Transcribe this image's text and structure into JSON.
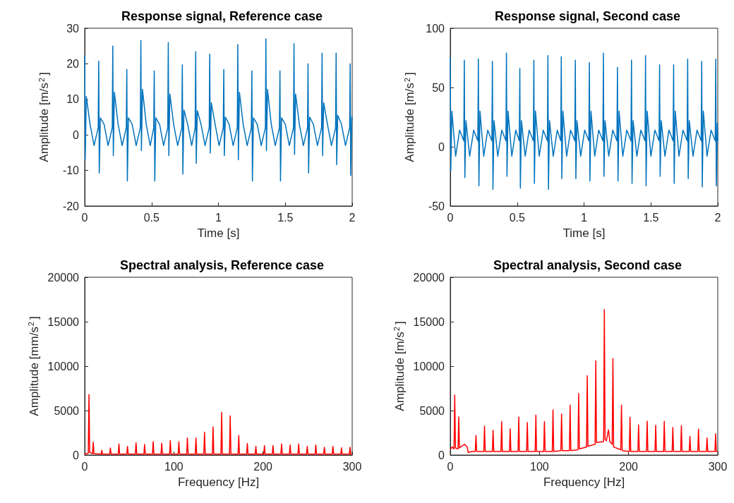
{
  "chart_data": [
    {
      "type": "line",
      "title": "Response signal, Reference case",
      "xlabel": "Time [s]",
      "ylabel": "Amplitude [m/s$^{2}$]",
      "xlim": [
        0,
        2
      ],
      "xticks": [
        0,
        0.5,
        1,
        1.5,
        2
      ],
      "ylim": [
        -20,
        30
      ],
      "yticks": [
        -20,
        -10,
        0,
        10,
        20,
        30
      ],
      "grid": false,
      "x": [
        0,
        0.004,
        0.012,
        0.04,
        0.07,
        0.101,
        0.105,
        0.109,
        0.117,
        0.145,
        0.175,
        0.206,
        0.21,
        0.214,
        0.222,
        0.25,
        0.28,
        0.311,
        0.315,
        0.319,
        0.327,
        0.355,
        0.385,
        0.416,
        0.42,
        0.424,
        0.432,
        0.46,
        0.49,
        0.516,
        0.52,
        0.524,
        0.532,
        0.56,
        0.59,
        0.621,
        0.625,
        0.629,
        0.637,
        0.665,
        0.695,
        0.726,
        0.73,
        0.734,
        0.742,
        0.77,
        0.8,
        0.826,
        0.83,
        0.834,
        0.842,
        0.87,
        0.9,
        0.931,
        0.935,
        0.939,
        0.947,
        0.975,
        1.005,
        1.036,
        1.04,
        1.044,
        1.052,
        1.08,
        1.11,
        1.141,
        1.145,
        1.149,
        1.157,
        1.185,
        1.215,
        1.246,
        1.25,
        1.254,
        1.262,
        1.29,
        1.32,
        1.351,
        1.355,
        1.359,
        1.367,
        1.395,
        1.425,
        1.456,
        1.46,
        1.464,
        1.472,
        1.5,
        1.53,
        1.561,
        1.565,
        1.569,
        1.577,
        1.605,
        1.635,
        1.666,
        1.67,
        1.674,
        1.682,
        1.71,
        1.74,
        1.771,
        1.775,
        1.779,
        1.787,
        1.815,
        1.845,
        1.876,
        1.88,
        1.884,
        1.892,
        1.92,
        1.95,
        1.981,
        1.985,
        1.989,
        1.997,
        2
      ],
      "series": [
        {
          "color": "#0072bd",
          "values": [
            22.4,
            -7,
            10.8,
            3,
            -3,
            2,
            20.7,
            -10.7,
            4.8,
            3,
            -3,
            2,
            25,
            -5.8,
            12,
            3,
            -3,
            2,
            18.4,
            -13,
            4.8,
            3,
            -3,
            2,
            26.6,
            -4.4,
            12.8,
            3,
            -3,
            2,
            18,
            -13,
            4.8,
            3,
            -3,
            2,
            26,
            -5.8,
            11.5,
            3,
            -3,
            2,
            19.7,
            -11,
            7,
            3,
            -3,
            2,
            23.4,
            -8,
            6.8,
            3,
            -3,
            2,
            22.7,
            -5.1,
            9,
            3,
            -3,
            2,
            18.4,
            -5.8,
            5,
            3,
            -3,
            2,
            25.4,
            -7,
            12,
            3,
            -3,
            2,
            18,
            -13,
            4.8,
            3,
            -3,
            2,
            27,
            -4.4,
            12.8,
            3,
            -3,
            2,
            18,
            -13,
            4.8,
            3,
            -3,
            2,
            25.7,
            -5.5,
            11.5,
            3,
            -3,
            2,
            20,
            -10.7,
            5,
            3,
            -3,
            2,
            23,
            -5.8,
            9,
            3,
            -3,
            2,
            23,
            -8.4,
            5.5,
            3,
            -3,
            2,
            20,
            -11.4,
            5,
            4
          ]
        }
      ]
    },
    {
      "type": "line",
      "title": "Response signal, Second case",
      "xlabel": "Time [s]",
      "ylabel": "Amplitude [m/s$^{2}$]",
      "xlim": [
        0,
        2
      ],
      "xticks": [
        0,
        0.5,
        1,
        1.5,
        2
      ],
      "ylim": [
        -50,
        100
      ],
      "yticks": [
        -50,
        0,
        50,
        100
      ],
      "grid": false,
      "x": [
        0,
        0.004,
        0.012,
        0.04,
        0.07,
        0.101,
        0.105,
        0.109,
        0.117,
        0.145,
        0.175,
        0.206,
        0.21,
        0.214,
        0.222,
        0.25,
        0.28,
        0.311,
        0.315,
        0.319,
        0.327,
        0.355,
        0.385,
        0.416,
        0.42,
        0.424,
        0.432,
        0.46,
        0.49,
        0.516,
        0.52,
        0.524,
        0.532,
        0.56,
        0.59,
        0.621,
        0.625,
        0.629,
        0.637,
        0.665,
        0.695,
        0.726,
        0.73,
        0.734,
        0.742,
        0.77,
        0.8,
        0.826,
        0.83,
        0.834,
        0.842,
        0.87,
        0.9,
        0.931,
        0.935,
        0.939,
        0.947,
        0.975,
        1.005,
        1.036,
        1.04,
        1.044,
        1.052,
        1.08,
        1.11,
        1.141,
        1.145,
        1.149,
        1.157,
        1.185,
        1.215,
        1.246,
        1.25,
        1.254,
        1.262,
        1.29,
        1.32,
        1.351,
        1.355,
        1.359,
        1.367,
        1.395,
        1.425,
        1.456,
        1.46,
        1.464,
        1.472,
        1.5,
        1.53,
        1.561,
        1.565,
        1.569,
        1.577,
        1.605,
        1.635,
        1.666,
        1.67,
        1.674,
        1.682,
        1.71,
        1.74,
        1.771,
        1.775,
        1.779,
        1.787,
        1.815,
        1.845,
        1.876,
        1.88,
        1.884,
        1.892,
        1.92,
        1.95,
        1.981,
        1.985,
        1.989,
        1.997,
        2
      ],
      "series": [
        {
          "color": "#0072bd",
          "values": [
            75,
            -20,
            30,
            -8,
            14,
            5,
            73,
            -26,
            22,
            -8,
            14,
            5,
            74,
            -33,
            30,
            -8,
            14,
            5,
            72,
            -36,
            22,
            -8,
            14,
            5,
            79,
            -25,
            30,
            -8,
            14,
            5,
            66,
            -35,
            22,
            -8,
            14,
            5,
            73,
            -31,
            30,
            -8,
            14,
            5,
            77,
            -36,
            22,
            -8,
            14,
            5,
            76,
            -27,
            30,
            -8,
            14,
            5,
            73,
            -27,
            22,
            -8,
            14,
            5,
            71,
            -29,
            30,
            -8,
            14,
            5,
            79,
            -25,
            22,
            -8,
            14,
            5,
            67,
            -29,
            30,
            -8,
            14,
            5,
            73,
            -31,
            22,
            -8,
            14,
            5,
            77,
            -33,
            30,
            -8,
            14,
            5,
            69,
            -25,
            22,
            -8,
            14,
            5,
            69,
            -31,
            30,
            -8,
            14,
            5,
            74,
            -27,
            22,
            -8,
            14,
            5,
            72,
            -34,
            30,
            -8,
            14,
            5,
            74,
            -33,
            20,
            5
          ]
        }
      ]
    },
    {
      "type": "line",
      "title": "Spectral analysis, Reference case",
      "xlabel": "Frequency [Hz]",
      "ylabel": "Amplitude [mm/s$^{2}$]",
      "xlim": [
        0,
        300
      ],
      "xticks": [
        0,
        100,
        200,
        300
      ],
      "ylim": [
        0,
        20000
      ],
      "yticks": [
        0,
        5000,
        10000,
        15000,
        20000
      ],
      "grid": false,
      "x": [
        0,
        4,
        4.8,
        5.6,
        8.8,
        9.6,
        10.4,
        18.4,
        19.2,
        20,
        28,
        28.8,
        29.6,
        37.6,
        38.4,
        39.2,
        47.2,
        48,
        48.8,
        56.8,
        57.6,
        58.4,
        66.4,
        67.2,
        68,
        76,
        76.8,
        77.6,
        85.6,
        86.4,
        87.2,
        95.2,
        96,
        96.8,
        104.8,
        105.6,
        106.4,
        114.4,
        115.2,
        116,
        124,
        124.8,
        125.6,
        133.6,
        134.4,
        135.2,
        143.2,
        144,
        144.8,
        152.8,
        153.6,
        154.4,
        162.4,
        163.2,
        164,
        172,
        172.8,
        173.6,
        181.6,
        182.4,
        183.2,
        191.2,
        192,
        192.8,
        200.8,
        201.6,
        202.4,
        210.4,
        211.2,
        212,
        220,
        220.8,
        221.6,
        229.6,
        230.4,
        231.2,
        239.2,
        240,
        240.8,
        248.8,
        249.6,
        250.4,
        258.4,
        259.2,
        260,
        268,
        268.8,
        269.6,
        277.6,
        278.4,
        279.2,
        287.2,
        288,
        288.8,
        296.8,
        297.6,
        298.4,
        300
      ],
      "series": [
        {
          "color": "#ff0000",
          "values": [
            100,
            200,
            6800,
            300,
            150,
            1450,
            150,
            100,
            530,
            100,
            100,
            800,
            100,
            100,
            1250,
            100,
            100,
            980,
            100,
            100,
            1380,
            100,
            100,
            1190,
            100,
            100,
            1510,
            100,
            100,
            1320,
            100,
            100,
            1640,
            100,
            100,
            1510,
            100,
            100,
            1930,
            100,
            100,
            1930,
            100,
            100,
            2570,
            100,
            100,
            3180,
            100,
            100,
            4800,
            100,
            100,
            4400,
            100,
            100,
            2200,
            100,
            100,
            1300,
            100,
            100,
            980,
            100,
            100,
            1060,
            100,
            100,
            1060,
            100,
            100,
            1250,
            100,
            100,
            1140,
            100,
            100,
            1250,
            100,
            100,
            980,
            100,
            100,
            1140,
            100,
            100,
            880,
            100,
            100,
            980,
            100,
            100,
            820,
            100,
            100,
            880,
            100,
            100
          ]
        }
      ]
    },
    {
      "type": "line",
      "title": "Spectral analysis, Second case",
      "xlabel": "Frequency [Hz]",
      "ylabel": "Amplitude [m/s$^{2}$]",
      "xlim": [
        0,
        300
      ],
      "xticks": [
        0,
        100,
        200,
        300
      ],
      "ylim": [
        0,
        20000
      ],
      "yticks": [
        0,
        5000,
        10000,
        15000,
        20000
      ],
      "grid": false,
      "x": [
        0,
        2,
        4.2,
        5,
        5.8,
        8.7,
        9.5,
        10.3,
        13,
        16,
        19,
        20,
        24,
        28,
        28.8,
        29.6,
        37.6,
        38.4,
        39.2,
        47.2,
        48,
        48.8,
        56.8,
        57.6,
        58.4,
        66.4,
        67.2,
        68,
        76,
        76.8,
        77.6,
        85.6,
        86.4,
        87.2,
        95.2,
        96,
        96.8,
        104.8,
        105.6,
        106.4,
        114.4,
        115.2,
        116,
        124,
        124.8,
        125.6,
        133.6,
        134.4,
        135.2,
        143.2,
        144,
        144.8,
        152.8,
        153.6,
        154.4,
        162.4,
        163.2,
        164,
        172,
        172.8,
        173.6,
        175,
        177.4,
        179,
        181.6,
        182.4,
        183.2,
        191.2,
        192,
        192.8,
        200.8,
        201.6,
        202.4,
        210.4,
        211.2,
        212,
        220,
        220.8,
        221.6,
        229.6,
        230.4,
        231.2,
        239.2,
        240,
        240.8,
        248.8,
        249.6,
        250.4,
        258.4,
        259.2,
        260,
        268,
        268.8,
        269.6,
        277.6,
        278.4,
        279.2,
        287.2,
        288,
        288.8,
        296.8,
        297.6,
        298.4,
        300
      ],
      "series": [
        {
          "color": "#ff0000",
          "values": [
            600,
            900,
            700,
            6750,
            800,
            700,
            4290,
            800,
            1000,
            1200,
            900,
            300,
            400,
            400,
            2200,
            400,
            400,
            3260,
            400,
            400,
            2780,
            400,
            400,
            3760,
            400,
            400,
            2960,
            400,
            400,
            4290,
            400,
            400,
            3650,
            400,
            400,
            4500,
            400,
            400,
            3760,
            400,
            400,
            5080,
            400,
            500,
            4630,
            500,
            500,
            5610,
            500,
            600,
            6930,
            700,
            900,
            8920,
            1000,
            1200,
            10590,
            1400,
            1500,
            16360,
            1800,
            1600,
            2830,
            1500,
            1200,
            10850,
            900,
            600,
            5610,
            500,
            400,
            4240,
            400,
            400,
            3390,
            400,
            400,
            3810,
            400,
            400,
            3360,
            400,
            400,
            3780,
            400,
            400,
            3100,
            400,
            400,
            3310,
            400,
            400,
            2090,
            400,
            400,
            2910,
            400,
            400,
            1930,
            400,
            400,
            2380,
            400,
            400
          ]
        }
      ]
    }
  ]
}
